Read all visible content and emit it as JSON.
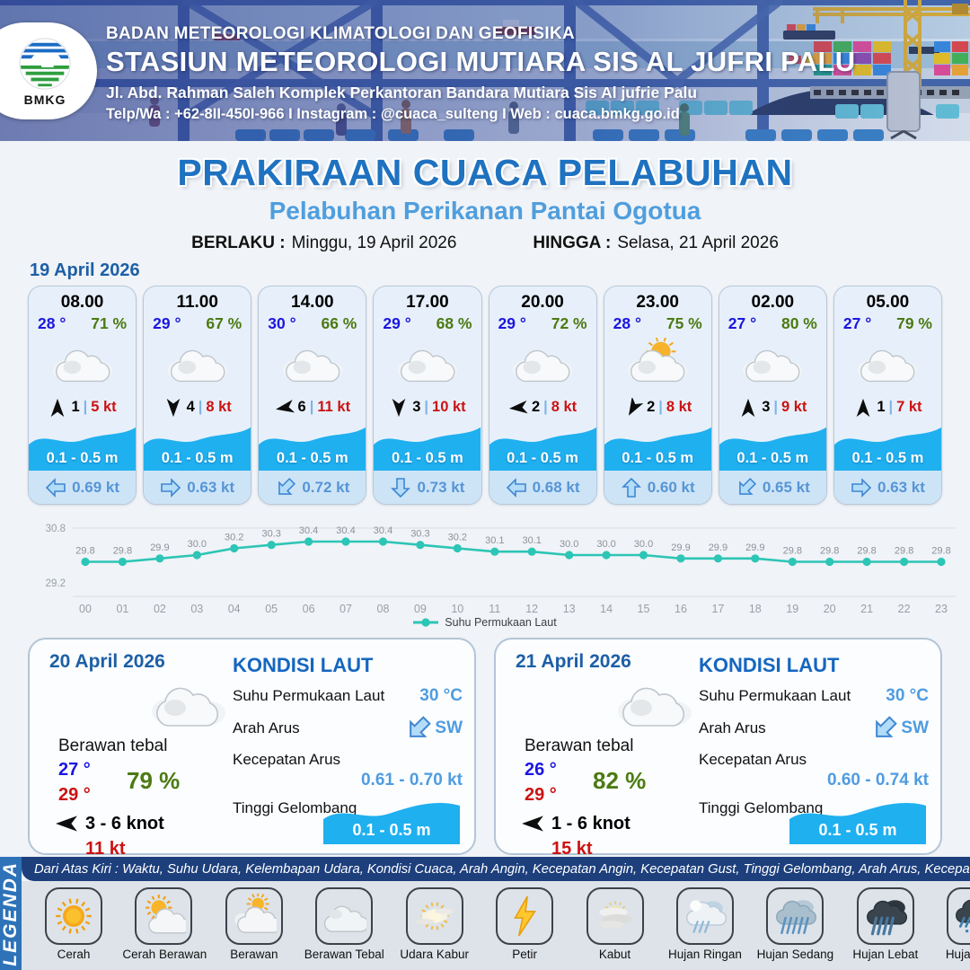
{
  "header": {
    "agency": "BADAN METEOROLOGI KLIMATOLOGI DAN GEOFISIKA",
    "station": "STASIUN METEOROLOGI MUTIARA SIS AL JUFRI PALU",
    "address": "Jl. Abd. Rahman Saleh Komplek Perkantoran Bandara Mutiara Sis Al jufrie Palu",
    "contact": "Telp/Wa : +62-8II-450I-966  I  Instagram : @cuaca_sulteng  I  Web : cuaca.bmkg.go.id",
    "logo_label": "BMKG"
  },
  "title": {
    "main": "PRAKIRAAN CUACA PELABUHAN",
    "subtitle": "Pelabuhan Perikanan Pantai Ogotua",
    "valid_from_label": "BERLAKU :",
    "valid_from": "Minggu, 19 April 2026",
    "valid_to_label": "HINGGA :",
    "valid_to": "Selasa, 21 April 2026"
  },
  "forecast": {
    "date": "19 April 2026",
    "cards": [
      {
        "time": "08.00",
        "temp": "28 °",
        "humidity": "71 %",
        "weather": "berawan",
        "wind_deg": 0,
        "wind_speed": "1",
        "gust": "5 kt",
        "wave": "0.1 - 0.5 m",
        "current_deg": 270,
        "current": "0.69 kt"
      },
      {
        "time": "11.00",
        "temp": "29 °",
        "humidity": "67 %",
        "weather": "berawan",
        "wind_deg": 180,
        "wind_speed": "4",
        "gust": "8 kt",
        "wave": "0.1 - 0.5 m",
        "current_deg": 90,
        "current": "0.63 kt"
      },
      {
        "time": "14.00",
        "temp": "30 °",
        "humidity": "66 %",
        "weather": "berawan",
        "wind_deg": 260,
        "wind_speed": "6",
        "gust": "11 kt",
        "wave": "0.1 - 0.5 m",
        "current_deg": 225,
        "current": "0.72 kt"
      },
      {
        "time": "17.00",
        "temp": "29 °",
        "humidity": "68 %",
        "weather": "berawan",
        "wind_deg": 180,
        "wind_speed": "3",
        "gust": "10 kt",
        "wave": "0.1 - 0.5 m",
        "current_deg": 180,
        "current": "0.73 kt"
      },
      {
        "time": "20.00",
        "temp": "29 °",
        "humidity": "72 %",
        "weather": "berawan",
        "wind_deg": 265,
        "wind_speed": "2",
        "gust": "8 kt",
        "wave": "0.1 - 0.5 m",
        "current_deg": 270,
        "current": "0.68 kt"
      },
      {
        "time": "23.00",
        "temp": "28 °",
        "humidity": "75 %",
        "weather": "berawan-cerah",
        "wind_deg": 210,
        "wind_speed": "2",
        "gust": "8 kt",
        "wave": "0.1 - 0.5 m",
        "current_deg": 0,
        "current": "0.60 kt"
      },
      {
        "time": "02.00",
        "temp": "27 °",
        "humidity": "80 %",
        "weather": "berawan",
        "wind_deg": 0,
        "wind_speed": "3",
        "gust": "9 kt",
        "wave": "0.1 - 0.5 m",
        "current_deg": 225,
        "current": "0.65 kt"
      },
      {
        "time": "05.00",
        "temp": "27 °",
        "humidity": "79 %",
        "weather": "berawan",
        "wind_deg": 0,
        "wind_speed": "1",
        "gust": "7 kt",
        "wave": "0.1 - 0.5 m",
        "current_deg": 90,
        "current": "0.63 kt"
      }
    ]
  },
  "chart_data": {
    "type": "line",
    "x": [
      "00",
      "01",
      "02",
      "03",
      "04",
      "05",
      "06",
      "07",
      "08",
      "09",
      "10",
      "11",
      "12",
      "13",
      "14",
      "15",
      "16",
      "17",
      "18",
      "19",
      "20",
      "21",
      "22",
      "23"
    ],
    "series": [
      {
        "name": "Suhu Permukaan Laut",
        "values": [
          29.8,
          29.8,
          29.9,
          30.0,
          30.2,
          30.3,
          30.4,
          30.4,
          30.4,
          30.3,
          30.2,
          30.1,
          30.1,
          30.0,
          30.0,
          30.0,
          29.9,
          29.9,
          29.9,
          29.8,
          29.8,
          29.8,
          29.8,
          29.8
        ]
      }
    ],
    "ylim": [
      29.2,
      30.8
    ],
    "ytick_labels": [
      "29.2",
      "30.8"
    ],
    "line_color": "#2cc5b6",
    "grid": true,
    "legend_position": "bottom"
  },
  "days": [
    {
      "date": "20 April 2026",
      "condition": "Berawan tebal",
      "temp_min": "27 °",
      "temp_max": "29 °",
      "humidity": "79 %",
      "wind_range": "3  - 6 knot",
      "wind_gust": "11 kt",
      "sea": {
        "title": "KONDISI LAUT",
        "sst_label": "Suhu Permukaan Laut",
        "sst_value": "30 °C",
        "current_dir_label": "Arah Arus",
        "current_dir_value": "SW",
        "current_speed_label": "Kecepatan Arus",
        "current_speed_value": "0.61  - 0.70 kt",
        "wave_label": "Tinggi Gelombang",
        "wave_value": "0.1 - 0.5 m"
      }
    },
    {
      "date": "21 April 2026",
      "condition": "Berawan tebal",
      "temp_min": "26 °",
      "temp_max": "29 °",
      "humidity": "82 %",
      "wind_range": "1  - 6 knot",
      "wind_gust": "15 kt",
      "sea": {
        "title": "KONDISI LAUT",
        "sst_label": "Suhu Permukaan Laut",
        "sst_value": "30 °C",
        "current_dir_label": "Arah Arus",
        "current_dir_value": "SW",
        "current_speed_label": "Kecepatan Arus",
        "current_speed_value": "0.60  - 0.74 kt",
        "wave_label": "Tinggi Gelombang",
        "wave_value": "0.1 - 0.5 m"
      }
    }
  ],
  "legend": {
    "title": "LEGENDA",
    "description": "Dari Atas Kiri : Waktu, Suhu Udara, Kelembapan Udara, Kondisi Cuaca, Arah Angin, Kecepatan Angin, Kecepatan Gust, Tinggi Gelombang, Arah Arus, Kecepatan Arus",
    "items": [
      {
        "label": "Cerah",
        "icon": "cerah"
      },
      {
        "label": "Cerah Berawan",
        "icon": "cerah-berawan"
      },
      {
        "label": "Berawan",
        "icon": "berawan"
      },
      {
        "label": "Berawan Tebal",
        "icon": "berawan-tebal"
      },
      {
        "label": "Udara Kabur",
        "icon": "udara-kabur"
      },
      {
        "label": "Petir",
        "icon": "petir"
      },
      {
        "label": "Kabut",
        "icon": "kabut"
      },
      {
        "label": "Hujan Ringan",
        "icon": "hujan-ringan"
      },
      {
        "label": "Hujan Sedang",
        "icon": "hujan-sedang"
      },
      {
        "label": "Hujan Lebat",
        "icon": "hujan-lebat"
      },
      {
        "label": "Hujan Petir",
        "icon": "hujan-petir"
      }
    ]
  },
  "colors": {
    "accent_blue": "#1f72c0",
    "light_blue": "#4f9ce0",
    "temp_blue": "#1b16e0",
    "humidity_green": "#4c7a12",
    "gust_red": "#cc1212",
    "wave_blue": "#1fb0f0",
    "sst_teal": "#2cc5b6"
  }
}
